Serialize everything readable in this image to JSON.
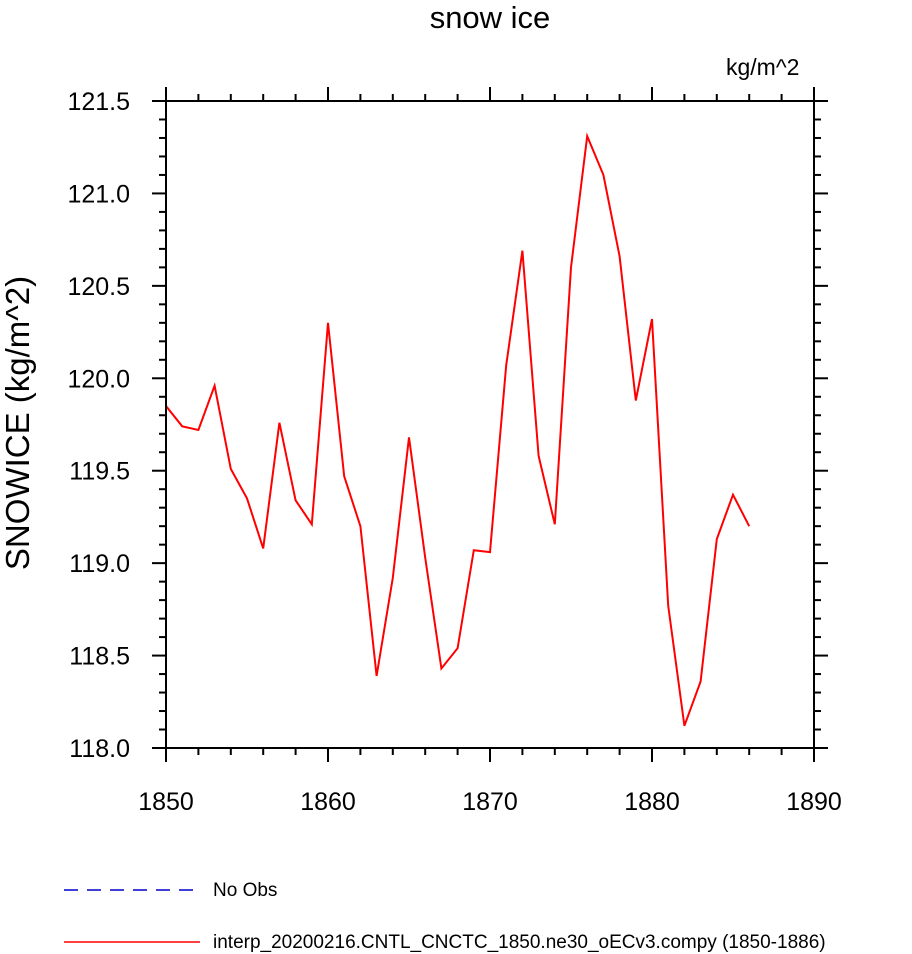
{
  "chart_data": {
    "type": "line",
    "title": "snow ice",
    "units": "kg/m^2",
    "ylabel": "SNOWICE  (kg/m^2)",
    "xlabel": "",
    "xlim": [
      1850,
      1890
    ],
    "ylim": [
      118.0,
      121.5
    ],
    "xticks": [
      "1850",
      "1860",
      "1870",
      "1880",
      "1890"
    ],
    "yticks": [
      "118.0",
      "118.5",
      "119.0",
      "119.5",
      "120.0",
      "120.5",
      "121.0",
      "121.5"
    ],
    "grid": false,
    "legend_position": "bottom",
    "series": [
      {
        "name": "No Obs",
        "color": "#0000cc",
        "style": "dashed",
        "x": [],
        "y": []
      },
      {
        "name": "interp_20200216.CNTL_CNCTC_1850.ne30_oECv3.compy (1850-1886)",
        "color": "#ff0000",
        "style": "solid",
        "x": [
          1850,
          1851,
          1852,
          1853,
          1854,
          1855,
          1856,
          1857,
          1858,
          1859,
          1860,
          1861,
          1862,
          1863,
          1864,
          1865,
          1866,
          1867,
          1868,
          1869,
          1870,
          1871,
          1872,
          1873,
          1874,
          1875,
          1876,
          1877,
          1878,
          1879,
          1880,
          1881,
          1882,
          1883,
          1884,
          1885,
          1886
        ],
        "y": [
          119.85,
          119.74,
          119.72,
          119.96,
          119.51,
          119.35,
          119.08,
          119.76,
          119.34,
          119.21,
          120.3,
          119.47,
          119.2,
          118.39,
          118.92,
          119.68,
          119.03,
          118.43,
          118.54,
          119.07,
          119.06,
          120.07,
          120.69,
          119.58,
          119.21,
          120.6,
          121.31,
          121.1,
          120.66,
          119.88,
          120.32,
          118.77,
          118.12,
          118.36,
          119.13,
          119.37,
          119.2
        ]
      }
    ]
  }
}
